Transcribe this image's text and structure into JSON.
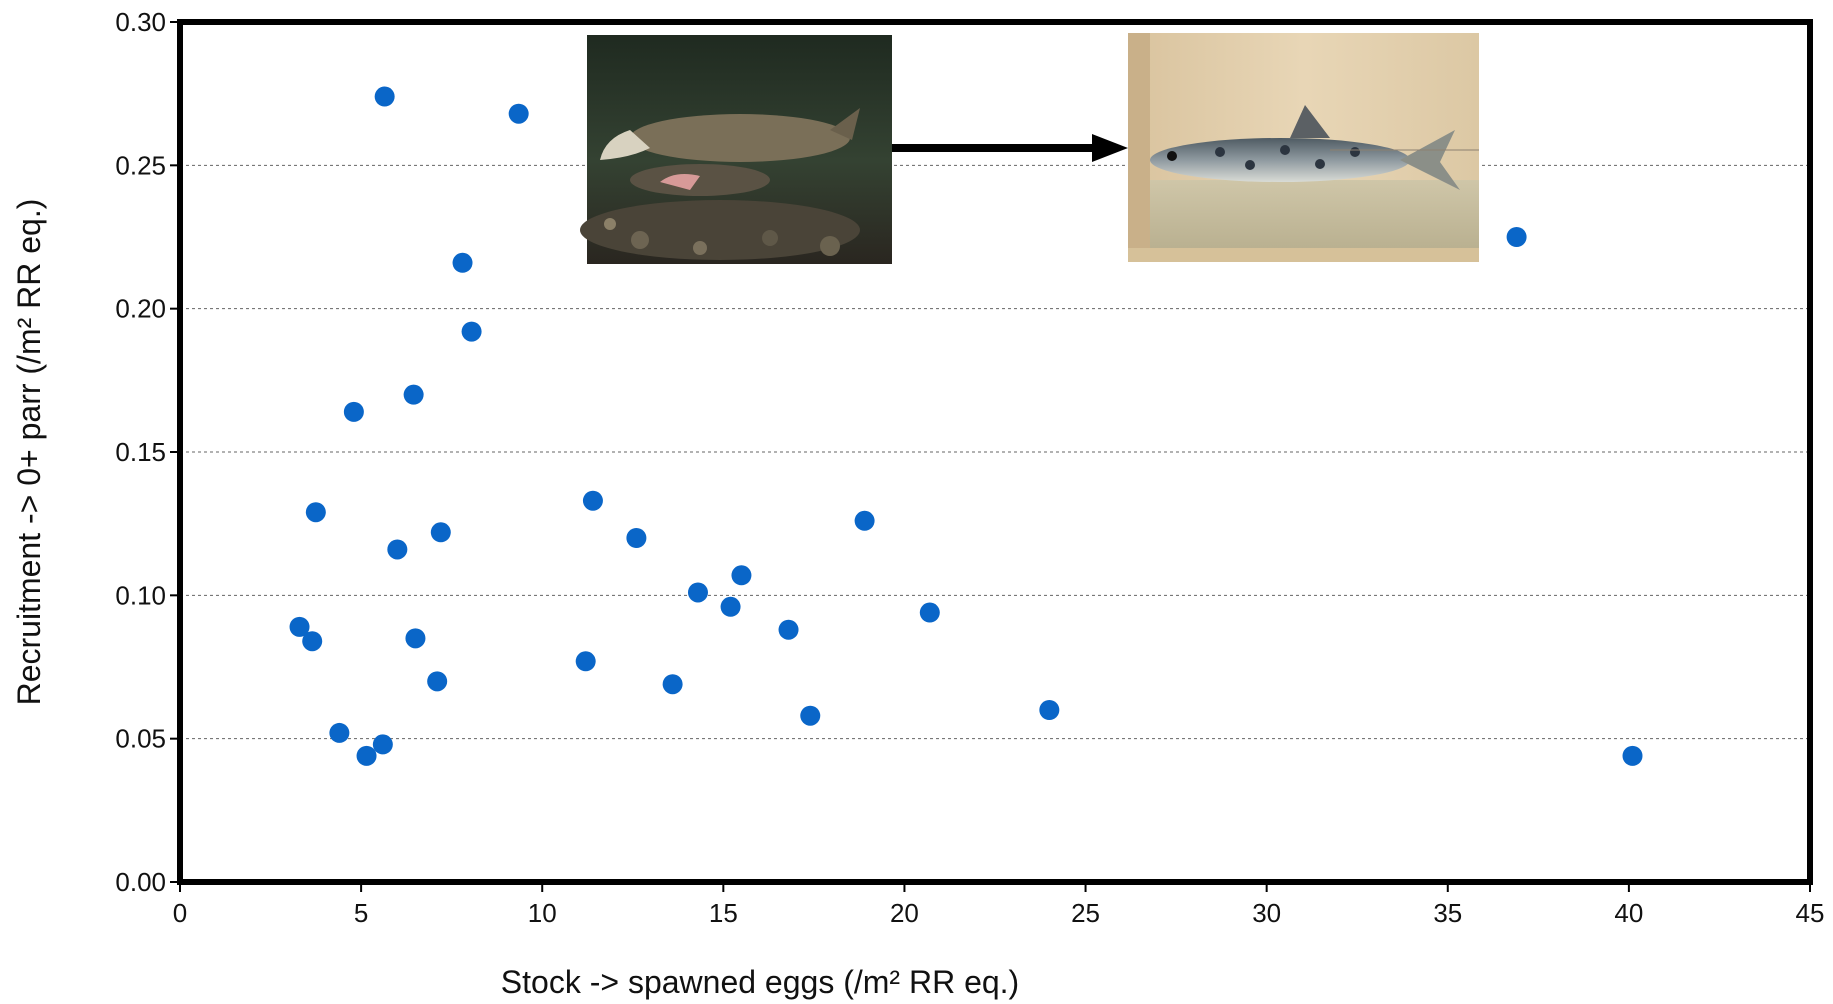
{
  "chart_data": {
    "type": "scatter",
    "title": "",
    "xlabel": "Stock -> spawned eggs  (/m² RR eq.)",
    "ylabel": "Recruitment -> 0+ parr (/m² RR eq.)",
    "xlim": [
      0,
      45
    ],
    "ylim": [
      0,
      0.3
    ],
    "xticks": [
      "0",
      "5",
      "10",
      "15",
      "20",
      "25",
      "30",
      "35",
      "40",
      "45"
    ],
    "yticks": [
      "0.00",
      "0.05",
      "0.10",
      "0.15",
      "0.20",
      "0.25",
      "0.30"
    ],
    "grid": "horizontal dashed",
    "legend": "none",
    "marker_color": "#0a66c8",
    "series": [
      {
        "points": [
          [
            3.3,
            0.089
          ],
          [
            3.65,
            0.084
          ],
          [
            3.75,
            0.129
          ],
          [
            4.4,
            0.052
          ],
          [
            4.8,
            0.164
          ],
          [
            5.15,
            0.044
          ],
          [
            5.6,
            0.048
          ],
          [
            5.65,
            0.274
          ],
          [
            6.0,
            0.116
          ],
          [
            6.45,
            0.17
          ],
          [
            6.5,
            0.085
          ],
          [
            7.1,
            0.07
          ],
          [
            7.2,
            0.122
          ],
          [
            7.8,
            0.216
          ],
          [
            8.05,
            0.192
          ],
          [
            9.35,
            0.268
          ],
          [
            11.2,
            0.077
          ],
          [
            11.4,
            0.133
          ],
          [
            12.6,
            0.12
          ],
          [
            13.6,
            0.069
          ],
          [
            14.3,
            0.101
          ],
          [
            15.2,
            0.096
          ],
          [
            15.5,
            0.107
          ],
          [
            16.8,
            0.088
          ],
          [
            17.4,
            0.058
          ],
          [
            18.9,
            0.126
          ],
          [
            20.7,
            0.094
          ],
          [
            24.0,
            0.06
          ],
          [
            36.9,
            0.225
          ],
          [
            40.1,
            0.044
          ]
        ]
      }
    ]
  },
  "inset_images": {
    "left_photo": "spawning-salmon-photo",
    "right_photo": "salmon-parr-photo",
    "arrow": "right-arrow"
  }
}
